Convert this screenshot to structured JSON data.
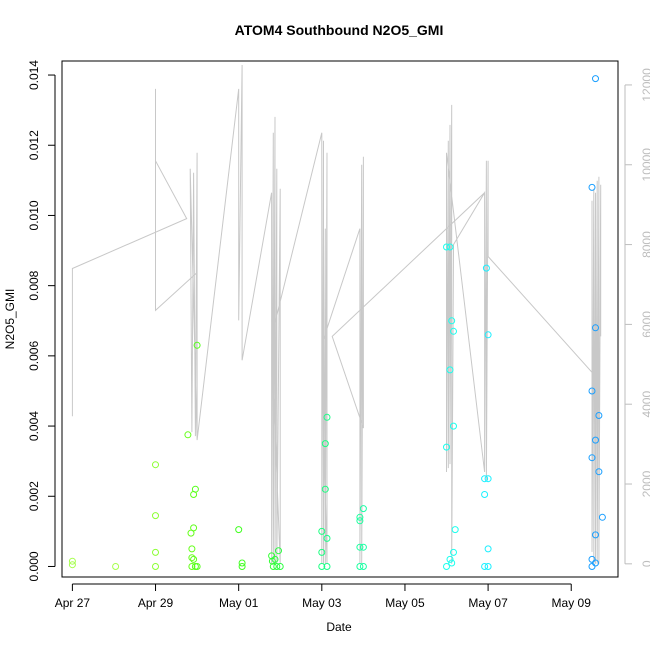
{
  "chart_data": {
    "type": "scatter",
    "title": "ATOM4 Southbound N2O5_GMI",
    "xlabel": "Date",
    "ylabel": "N2O5_GMI",
    "xlim": [
      "2018-04-26T18:00",
      "2018-05-10T03:00"
    ],
    "ylim": [
      -0.0003,
      0.0144
    ],
    "y2lim": [
      -330,
      12600
    ],
    "x_ticks": [
      {
        "label": "Apr 27",
        "date": "2018-04-27"
      },
      {
        "label": "Apr 29",
        "date": "2018-04-29"
      },
      {
        "label": "May 01",
        "date": "2018-05-01"
      },
      {
        "label": "May 03",
        "date": "2018-05-03"
      },
      {
        "label": "May 05",
        "date": "2018-05-05"
      },
      {
        "label": "May 07",
        "date": "2018-05-07"
      },
      {
        "label": "May 09",
        "date": "2018-05-09"
      }
    ],
    "y_ticks": [
      "0.000",
      "0.002",
      "0.004",
      "0.006",
      "0.008",
      "0.010",
      "0.012",
      "0.014"
    ],
    "y2_ticks": [
      "0",
      "2000",
      "4000",
      "6000",
      "8000",
      "10000",
      "12000"
    ],
    "points": [
      {
        "x": "2018-04-27T00:00",
        "y": 0.00015,
        "color": "#a6ff4d"
      },
      {
        "x": "2018-04-27T00:00",
        "y": 5e-05,
        "color": "#a6ff4d"
      },
      {
        "x": "2018-04-28T00:58",
        "y": 0.0,
        "color": "#a6ff4d"
      },
      {
        "x": "2018-04-29T00:00",
        "y": 0.0029,
        "color": "#8cff33"
      },
      {
        "x": "2018-04-29T00:00",
        "y": 0.00145,
        "color": "#8cff33"
      },
      {
        "x": "2018-04-29T00:00",
        "y": 0.0004,
        "color": "#8cff33"
      },
      {
        "x": "2018-04-29T00:00",
        "y": 0.0,
        "color": "#8cff33"
      },
      {
        "x": "2018-04-29T18:42",
        "y": 0.00375,
        "color": "#66ff1a"
      },
      {
        "x": "2018-04-29T20:30",
        "y": 0.00095,
        "color": "#66ff1a"
      },
      {
        "x": "2018-04-29T21:00",
        "y": 0.0005,
        "color": "#66ff1a"
      },
      {
        "x": "2018-04-29T21:00",
        "y": 0.00025,
        "color": "#66ff1a"
      },
      {
        "x": "2018-04-29T21:00",
        "y": 0.0,
        "color": "#66ff1a"
      },
      {
        "x": "2018-04-29T22:00",
        "y": 0.00205,
        "color": "#5eff1a"
      },
      {
        "x": "2018-04-29T22:00",
        "y": 0.0011,
        "color": "#5eff1a"
      },
      {
        "x": "2018-04-29T22:00",
        "y": 0.0002,
        "color": "#5eff1a"
      },
      {
        "x": "2018-04-29T23:00",
        "y": 0.0022,
        "color": "#55ff1a"
      },
      {
        "x": "2018-04-29T23:00",
        "y": 0.0,
        "color": "#55ff1a"
      },
      {
        "x": "2018-04-30T00:00",
        "y": 0.0063,
        "color": "#55ff1a"
      },
      {
        "x": "2018-04-30T00:00",
        "y": 0.0,
        "color": "#55ff1a"
      },
      {
        "x": "2018-05-01T00:00",
        "y": 0.00105,
        "color": "#40ff20"
      },
      {
        "x": "2018-05-01T02:00",
        "y": 0.0001,
        "color": "#40ff20"
      },
      {
        "x": "2018-05-01T02:00",
        "y": 0.0,
        "color": "#40ff20"
      },
      {
        "x": "2018-05-01T19:00",
        "y": 0.0003,
        "color": "#33ff33"
      },
      {
        "x": "2018-05-01T19:30",
        "y": 0.00015,
        "color": "#33ff33"
      },
      {
        "x": "2018-05-01T20:00",
        "y": 0.0,
        "color": "#33ff33"
      },
      {
        "x": "2018-05-01T21:00",
        "y": 0.0002,
        "color": "#2aff40"
      },
      {
        "x": "2018-05-01T22:00",
        "y": 0.0,
        "color": "#2aff40"
      },
      {
        "x": "2018-05-01T23:00",
        "y": 0.00045,
        "color": "#2aff40"
      },
      {
        "x": "2018-05-02T00:00",
        "y": 0.0,
        "color": "#2aff40"
      },
      {
        "x": "2018-05-03T00:00",
        "y": 0.001,
        "color": "#1aff80"
      },
      {
        "x": "2018-05-03T00:00",
        "y": 0.0004,
        "color": "#1aff80"
      },
      {
        "x": "2018-05-03T00:00",
        "y": 0.0,
        "color": "#1aff80"
      },
      {
        "x": "2018-05-03T02:00",
        "y": 0.0035,
        "color": "#1aff80"
      },
      {
        "x": "2018-05-03T02:00",
        "y": 0.0022,
        "color": "#1aff80"
      },
      {
        "x": "2018-05-03T03:00",
        "y": 0.00425,
        "color": "#1aff88"
      },
      {
        "x": "2018-05-03T03:00",
        "y": 0.0008,
        "color": "#1aff88"
      },
      {
        "x": "2018-05-03T03:00",
        "y": 0.0,
        "color": "#1aff88"
      },
      {
        "x": "2018-05-03T22:00",
        "y": 0.0014,
        "color": "#1aff9e"
      },
      {
        "x": "2018-05-03T22:00",
        "y": 0.0013,
        "color": "#1aff9e"
      },
      {
        "x": "2018-05-03T22:00",
        "y": 0.00055,
        "color": "#1aff9e"
      },
      {
        "x": "2018-05-03T22:00",
        "y": 0.0,
        "color": "#1aff9e"
      },
      {
        "x": "2018-05-04T00:00",
        "y": 0.00165,
        "color": "#1affa6"
      },
      {
        "x": "2018-05-04T00:00",
        "y": 0.00055,
        "color": "#1affa6"
      },
      {
        "x": "2018-05-04T00:00",
        "y": 0.0,
        "color": "#1affa6"
      },
      {
        "x": "2018-05-06T00:00",
        "y": 0.0091,
        "color": "#1affee"
      },
      {
        "x": "2018-05-06T00:00",
        "y": 0.0034,
        "color": "#1affee"
      },
      {
        "x": "2018-05-06T00:00",
        "y": 0.0,
        "color": "#1affee"
      },
      {
        "x": "2018-05-06T02:00",
        "y": 0.0091,
        "color": "#1affee"
      },
      {
        "x": "2018-05-06T02:00",
        "y": 0.0056,
        "color": "#1affee"
      },
      {
        "x": "2018-05-06T02:00",
        "y": 0.0002,
        "color": "#1affee"
      },
      {
        "x": "2018-05-06T03:00",
        "y": 0.007,
        "color": "#1affee"
      },
      {
        "x": "2018-05-06T03:00",
        "y": 0.0001,
        "color": "#1affee"
      },
      {
        "x": "2018-05-06T04:00",
        "y": 0.0067,
        "color": "#1affee"
      },
      {
        "x": "2018-05-06T04:00",
        "y": 0.004,
        "color": "#1affee"
      },
      {
        "x": "2018-05-06T04:00",
        "y": 0.0004,
        "color": "#1affee"
      },
      {
        "x": "2018-05-06T05:00",
        "y": 0.00105,
        "color": "#1affee"
      },
      {
        "x": "2018-05-06T22:00",
        "y": 0.0025,
        "color": "#1aefff"
      },
      {
        "x": "2018-05-06T22:00",
        "y": 0.00205,
        "color": "#1aefff"
      },
      {
        "x": "2018-05-06T22:00",
        "y": 0.0,
        "color": "#1aefff"
      },
      {
        "x": "2018-05-06T23:00",
        "y": 0.0085,
        "color": "#1aefff"
      },
      {
        "x": "2018-05-07T00:00",
        "y": 0.0066,
        "color": "#1aefff"
      },
      {
        "x": "2018-05-07T00:00",
        "y": 0.0025,
        "color": "#1aefff"
      },
      {
        "x": "2018-05-07T00:00",
        "y": 0.0005,
        "color": "#1aefff"
      },
      {
        "x": "2018-05-07T00:00",
        "y": 0.0,
        "color": "#1aefff"
      },
      {
        "x": "2018-05-09T12:00",
        "y": 0.0108,
        "color": "#1a9fff"
      },
      {
        "x": "2018-05-09T12:00",
        "y": 0.0031,
        "color": "#1a9fff"
      },
      {
        "x": "2018-05-09T12:00",
        "y": 0.005,
        "color": "#1a9fff"
      },
      {
        "x": "2018-05-09T12:00",
        "y": 0.0002,
        "color": "#1a9fff"
      },
      {
        "x": "2018-05-09T12:00",
        "y": 0.0,
        "color": "#1a9fff"
      },
      {
        "x": "2018-05-09T14:00",
        "y": 0.0139,
        "color": "#1a9fff"
      },
      {
        "x": "2018-05-09T14:00",
        "y": 0.0068,
        "color": "#1a9fff"
      },
      {
        "x": "2018-05-09T14:00",
        "y": 0.0036,
        "color": "#1a9fff"
      },
      {
        "x": "2018-05-09T14:00",
        "y": 0.0009,
        "color": "#1a9fff"
      },
      {
        "x": "2018-05-09T14:00",
        "y": 0.0001,
        "color": "#1a9fff"
      },
      {
        "x": "2018-05-09T16:00",
        "y": 0.0027,
        "color": "#1a9fff"
      },
      {
        "x": "2018-05-09T16:00",
        "y": 0.0043,
        "color": "#1a9fff"
      },
      {
        "x": "2018-05-09T18:00",
        "y": 0.0014,
        "color": "#1a9fff"
      }
    ],
    "right_axis_line": {
      "color": "#c8c8c8",
      "points": [
        [
          "2018-04-27T00:00",
          3700
        ],
        [
          "2018-04-27T00:00",
          7400
        ],
        [
          "2018-04-29T18:00",
          8650
        ],
        [
          "2018-04-29T00:00",
          10100
        ],
        [
          "2018-04-29T00:00",
          7900
        ],
        [
          "2018-04-29T00:00",
          11900
        ],
        [
          "2018-04-29T00:00",
          6350
        ],
        [
          "2018-04-30T00:00",
          7300
        ],
        [
          "2018-04-30T00:00",
          3100
        ],
        [
          "2018-04-29T20:00",
          9900
        ],
        [
          "2018-04-29T21:00",
          3300
        ],
        [
          "2018-04-29T22:00",
          9800
        ],
        [
          "2018-04-29T23:00",
          3200
        ],
        [
          "2018-04-30T00:00",
          10300
        ],
        [
          "2018-04-30T00:00",
          3100
        ],
        [
          "2018-05-01T00:00",
          11900
        ],
        [
          "2018-05-01T00:00",
          6100
        ],
        [
          "2018-05-01T02:00",
          12500
        ],
        [
          "2018-05-01T02:00",
          5100
        ],
        [
          "2018-05-01T19:00",
          9300
        ],
        [
          "2018-05-01T19:00",
          0
        ],
        [
          "2018-05-01T20:00",
          10800
        ],
        [
          "2018-05-01T20:00",
          0
        ],
        [
          "2018-05-01T21:00",
          11200
        ],
        [
          "2018-05-01T21:00",
          0
        ],
        [
          "2018-05-01T22:00",
          9900
        ],
        [
          "2018-05-01T22:00",
          0
        ],
        [
          "2018-05-02T00:00",
          9400
        ],
        [
          "2018-05-02T00:00",
          0
        ],
        [
          "2018-05-01T19:00",
          5700
        ],
        [
          "2018-05-03T00:00",
          10800
        ],
        [
          "2018-05-03T00:00",
          0
        ],
        [
          "2018-05-03T01:00",
          10600
        ],
        [
          "2018-05-03T01:00",
          0
        ],
        [
          "2018-05-03T02:00",
          8400
        ],
        [
          "2018-05-03T02:00",
          0
        ],
        [
          "2018-05-03T03:00",
          10300
        ],
        [
          "2018-05-03T03:00",
          0
        ],
        [
          "2018-05-03T00:00",
          5500
        ],
        [
          "2018-05-03T22:00",
          8400
        ],
        [
          "2018-05-03T22:00",
          0
        ],
        [
          "2018-05-03T23:00",
          10000
        ],
        [
          "2018-05-03T23:00",
          0
        ],
        [
          "2018-05-04T00:00",
          10200
        ],
        [
          "2018-05-04T00:00",
          3400
        ],
        [
          "2018-05-03T06:00",
          5700
        ],
        [
          "2018-05-06T22:00",
          9300
        ],
        [
          "2018-05-06T22:00",
          2300
        ],
        [
          "2018-05-06T00:00",
          10300
        ],
        [
          "2018-05-06T00:00",
          2300
        ],
        [
          "2018-05-06T01:00",
          10600
        ],
        [
          "2018-05-06T01:00",
          2400
        ],
        [
          "2018-05-06T02:00",
          11000
        ],
        [
          "2018-05-06T02:00",
          2500
        ],
        [
          "2018-05-06T03:00",
          11500
        ],
        [
          "2018-05-06T03:00",
          0
        ],
        [
          "2018-05-06T04:00",
          7800
        ],
        [
          "2018-05-06T04:00",
          8000
        ],
        [
          "2018-05-06T22:00",
          9300
        ],
        [
          "2018-05-06T22:00",
          2300
        ],
        [
          "2018-05-06T23:00",
          10100
        ],
        [
          "2018-05-06T23:00",
          2100
        ],
        [
          "2018-05-07T00:00",
          10100
        ],
        [
          "2018-05-07T00:00",
          7700
        ],
        [
          "2018-05-09T12:00",
          4800
        ],
        [
          "2018-05-09T12:00",
          9100
        ],
        [
          "2018-05-09T12:00",
          300
        ],
        [
          "2018-05-09T13:00",
          9400
        ],
        [
          "2018-05-09T13:00",
          0
        ],
        [
          "2018-05-09T14:00",
          9300
        ],
        [
          "2018-05-09T14:00",
          0
        ],
        [
          "2018-05-09T15:00",
          9600
        ],
        [
          "2018-05-09T15:00",
          0
        ],
        [
          "2018-05-09T16:00",
          9700
        ],
        [
          "2018-05-09T16:00",
          0
        ],
        [
          "2018-05-09T17:00",
          9500
        ],
        [
          "2018-05-09T17:00",
          5700
        ]
      ]
    },
    "grid": false,
    "legend": "none"
  }
}
